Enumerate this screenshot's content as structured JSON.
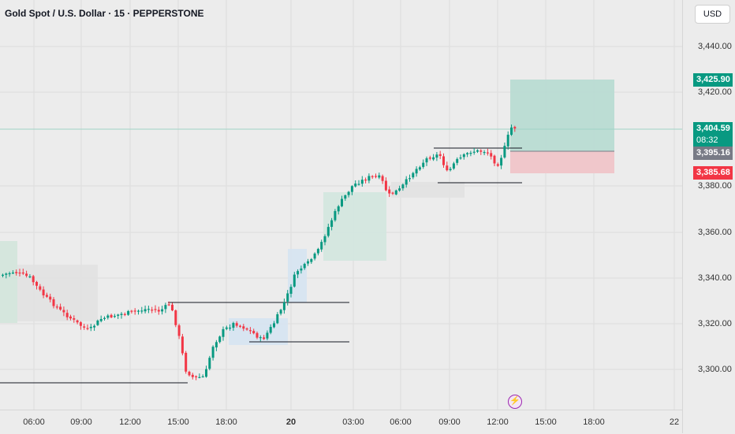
{
  "header": {
    "symbol_title": "Gold Spot / U.S. Dollar · 15 · PEPPERSTONE",
    "currency": "USD"
  },
  "price_axis": {
    "labels": [
      "3,440.00",
      "3,420.00",
      "3,380.00",
      "3,360.00",
      "3,340.00",
      "3,320.00",
      "3,300.00"
    ]
  },
  "badges": {
    "take_profit": "3,425.90",
    "current_price": "3,404.59",
    "countdown": "08:32",
    "entry": "3,395.16",
    "stop_loss": "3,385.68"
  },
  "time_axis": {
    "labels": [
      "06:00",
      "09:00",
      "12:00",
      "15:00",
      "18:00",
      "20",
      "03:00",
      "06:00",
      "09:00",
      "12:00",
      "15:00",
      "18:00",
      "22"
    ]
  },
  "colors": {
    "bull": "#089981",
    "bear": "#f23645",
    "tp_zone": "#b7dcd2",
    "sl_zone": "#f0c5c9",
    "entry_badge": "#787b86",
    "event_icon": "#9c27b0"
  },
  "icons": {
    "event": "lightning-bolt-icon"
  }
}
